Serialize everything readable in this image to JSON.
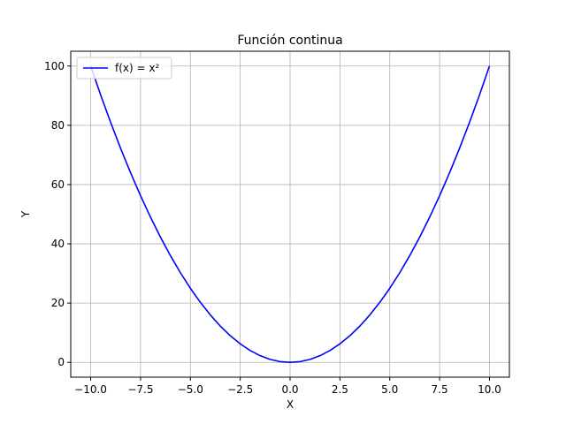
{
  "chart_data": {
    "type": "line",
    "title": "Función continua",
    "xlabel": "X",
    "ylabel": "Y",
    "xlim": [
      -11,
      11
    ],
    "ylim": [
      -5,
      105
    ],
    "x_ticks": [
      -10.0,
      -7.5,
      -5.0,
      -2.5,
      0.0,
      2.5,
      5.0,
      7.5,
      10.0
    ],
    "x_tick_labels": [
      "−10.0",
      "−7.5",
      "−5.0",
      "−2.5",
      "0.0",
      "2.5",
      "5.0",
      "7.5",
      "10.0"
    ],
    "y_ticks": [
      0,
      20,
      40,
      60,
      80,
      100
    ],
    "y_tick_labels": [
      "0",
      "20",
      "40",
      "60",
      "80",
      "100"
    ],
    "grid": true,
    "legend_position": "top-left",
    "series": [
      {
        "name": "f(x) = x²",
        "color": "#0000ff",
        "x": [
          -10,
          -9.5,
          -9,
          -8.5,
          -8,
          -7.5,
          -7,
          -6.5,
          -6,
          -5.5,
          -5,
          -4.5,
          -4,
          -3.5,
          -3,
          -2.5,
          -2,
          -1.5,
          -1,
          -0.5,
          0,
          0.5,
          1,
          1.5,
          2,
          2.5,
          3,
          3.5,
          4,
          4.5,
          5,
          5.5,
          6,
          6.5,
          7,
          7.5,
          8,
          8.5,
          9,
          9.5,
          10
        ],
        "y": [
          100,
          90.25,
          81,
          72.25,
          64,
          56.25,
          49,
          42.25,
          36,
          30.25,
          25,
          20.25,
          16,
          12.25,
          9,
          6.25,
          4,
          2.25,
          1,
          0.25,
          0,
          0.25,
          1,
          2.25,
          4,
          6.25,
          9,
          12.25,
          16,
          20.25,
          25,
          30.25,
          36,
          42.25,
          49,
          56.25,
          64,
          72.25,
          81,
          90.25,
          100
        ]
      }
    ]
  }
}
